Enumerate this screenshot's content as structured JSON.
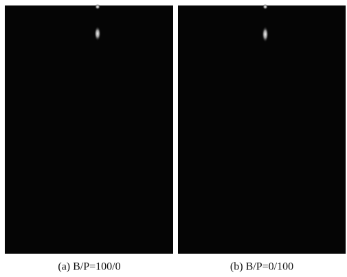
{
  "panels": [
    {
      "caption": "(a) B/P=100/0"
    },
    {
      "caption": "(b) B/P=0/100"
    }
  ]
}
